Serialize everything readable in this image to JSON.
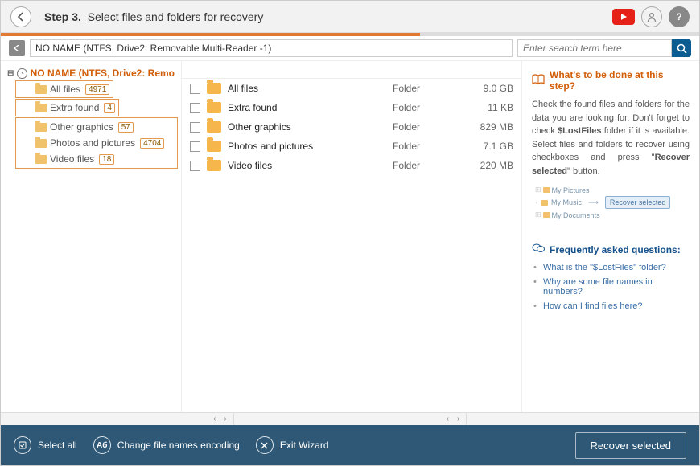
{
  "header": {
    "step_prefix": "Step 3.",
    "step_title": "Select files and folders for recovery"
  },
  "progress": {
    "segments": [
      "done",
      "done",
      "cur",
      "future",
      "future"
    ]
  },
  "breadcrumb": {
    "path": "NO NAME (NTFS, Drive2: Removable Multi-Reader  -1)",
    "search_placeholder": "Enter search term here"
  },
  "tree": {
    "root_label": "NO NAME (NTFS, Drive2: Remo",
    "nodes": [
      {
        "label": "All files",
        "count": "4971",
        "highlighted": true,
        "in_box": false
      },
      {
        "label": "Extra found",
        "count": "4",
        "highlighted": true,
        "in_box": false
      },
      {
        "label": "Other graphics",
        "count": "57",
        "highlighted": false,
        "in_box": true
      },
      {
        "label": "Photos and pictures",
        "count": "4704",
        "highlighted": false,
        "in_box": true
      },
      {
        "label": "Video files",
        "count": "18",
        "highlighted": false,
        "in_box": true
      }
    ]
  },
  "list": {
    "rows": [
      {
        "name": "All files",
        "type": "Folder",
        "size": "9.0 GB"
      },
      {
        "name": "Extra found",
        "type": "Folder",
        "size": "11 KB"
      },
      {
        "name": "Other graphics",
        "type": "Folder",
        "size": "829 MB"
      },
      {
        "name": "Photos and pictures",
        "type": "Folder",
        "size": "7.1 GB"
      },
      {
        "name": "Video files",
        "type": "Folder",
        "size": "220 MB"
      }
    ]
  },
  "info": {
    "title": "What's to be done at this step?",
    "body_pre": "Check the found files and folders for the data you are looking for. Don't forget to check ",
    "body_bold1": "$LostFiles",
    "body_mid": " folder if it is available. Select files and folders to recover using checkboxes and press \"",
    "body_bold2": "Recover selected",
    "body_post": "\" button.",
    "illus_items": [
      "My Pictures",
      "My Music",
      "My Documents"
    ],
    "illus_btn": "Recover selected",
    "faq_title": "Frequently asked questions:",
    "faq": [
      "What is the \"$LostFiles\" folder?",
      "Why are some file names in numbers?",
      "How can I find files here?"
    ]
  },
  "footer": {
    "select_all": "Select all",
    "encoding": "Change file names encoding",
    "exit": "Exit Wizard",
    "recover": "Recover selected"
  }
}
